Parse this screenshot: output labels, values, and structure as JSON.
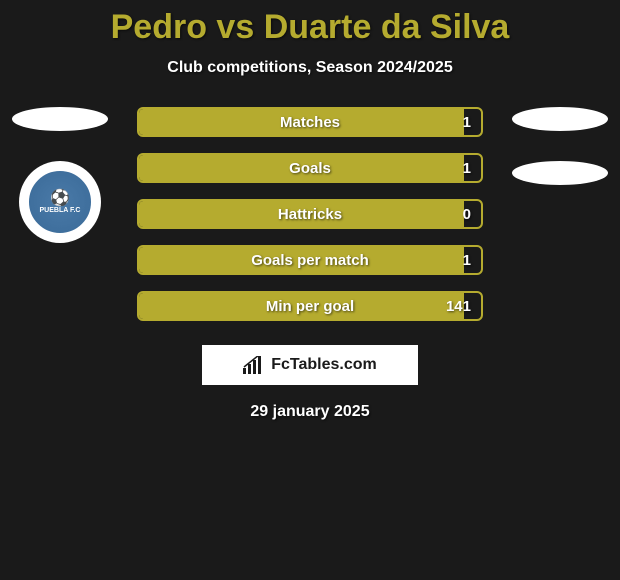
{
  "title": "Pedro vs Duarte da Silva",
  "subtitle": "Club competitions, Season 2024/2025",
  "date": "29 january 2025",
  "brand": {
    "label": "FcTables.com"
  },
  "theme": {
    "accent": "#b5ab2f",
    "background": "#1a1a1a",
    "text": "#ffffff"
  },
  "left_side": {
    "ellipse_count": 1,
    "badge": {
      "label": "PUEBLA F.C",
      "color": "#4a7aa8"
    }
  },
  "right_side": {
    "ellipse_count": 2
  },
  "stats": [
    {
      "label": "Matches",
      "right_value": "1",
      "fill_pct": 95
    },
    {
      "label": "Goals",
      "right_value": "1",
      "fill_pct": 95
    },
    {
      "label": "Hattricks",
      "right_value": "0",
      "fill_pct": 95
    },
    {
      "label": "Goals per match",
      "right_value": "1",
      "fill_pct": 95
    },
    {
      "label": "Min per goal",
      "right_value": "141",
      "fill_pct": 95
    }
  ]
}
